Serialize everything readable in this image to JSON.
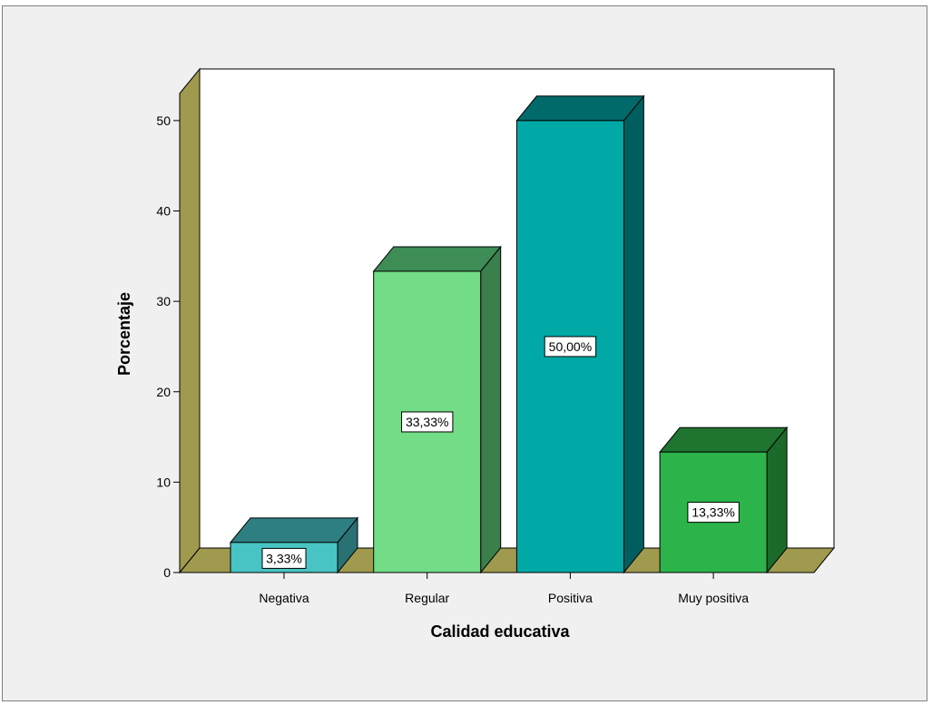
{
  "chart_data": {
    "type": "bar",
    "style": "3d",
    "title": "",
    "xlabel": "Calidad educativa",
    "ylabel": "Porcentaje",
    "ylim": [
      0,
      53
    ],
    "yticks": [
      0,
      10,
      20,
      30,
      40,
      50
    ],
    "categories": [
      "Negativa",
      "Regular",
      "Positiva",
      "Muy positiva"
    ],
    "values": [
      3.33,
      33.33,
      50.0,
      13.33
    ],
    "data_labels": [
      "3,33%",
      "33,33%",
      "50,00%",
      "13,33%"
    ],
    "colors": {
      "front": [
        "#48c4c4",
        "#72dc86",
        "#00a8a6",
        "#2cb44a"
      ],
      "top": [
        "#2e7f82",
        "#3e8c56",
        "#006a6a",
        "#1f7430"
      ],
      "side": [
        "#2a7174",
        "#3a7f4c",
        "#005e5e",
        "#1c6a2a"
      ],
      "wall": "#a09a4e",
      "floor": "#a09a4e",
      "plot_background": "#ffffff",
      "frame_background": "#f0f0f0"
    },
    "grid": false,
    "legend": "none"
  }
}
